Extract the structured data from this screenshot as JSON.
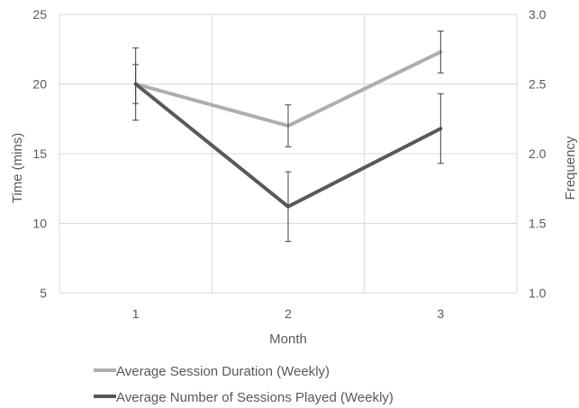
{
  "chart_data": {
    "type": "line",
    "x": [
      1,
      2,
      3
    ],
    "categories": [
      "1",
      "2",
      "3"
    ],
    "xlabel": "Month",
    "ylabel": "Time (mins)",
    "y2label": "Frequency",
    "ylim": [
      5,
      25
    ],
    "y2lim": [
      1.0,
      3.0
    ],
    "yticks": [
      "5",
      "10",
      "15",
      "20",
      "25"
    ],
    "y2ticks": [
      "1.0",
      "1.5",
      "2.0",
      "2.5",
      "3.0"
    ],
    "grid": true,
    "legend_position": "bottom",
    "series": [
      {
        "name": "Average Session Duration (Weekly)",
        "axis": "left",
        "color": "#AEAEAE",
        "values": [
          20.0,
          17.0,
          22.3
        ],
        "error": [
          1.4,
          1.5,
          1.5
        ]
      },
      {
        "name": "Average Number of Sessions Played (Weekly)",
        "axis": "right",
        "color": "#595959",
        "values": [
          2.5,
          1.62,
          2.18
        ],
        "error": [
          0.26,
          0.25,
          0.25
        ]
      }
    ]
  }
}
